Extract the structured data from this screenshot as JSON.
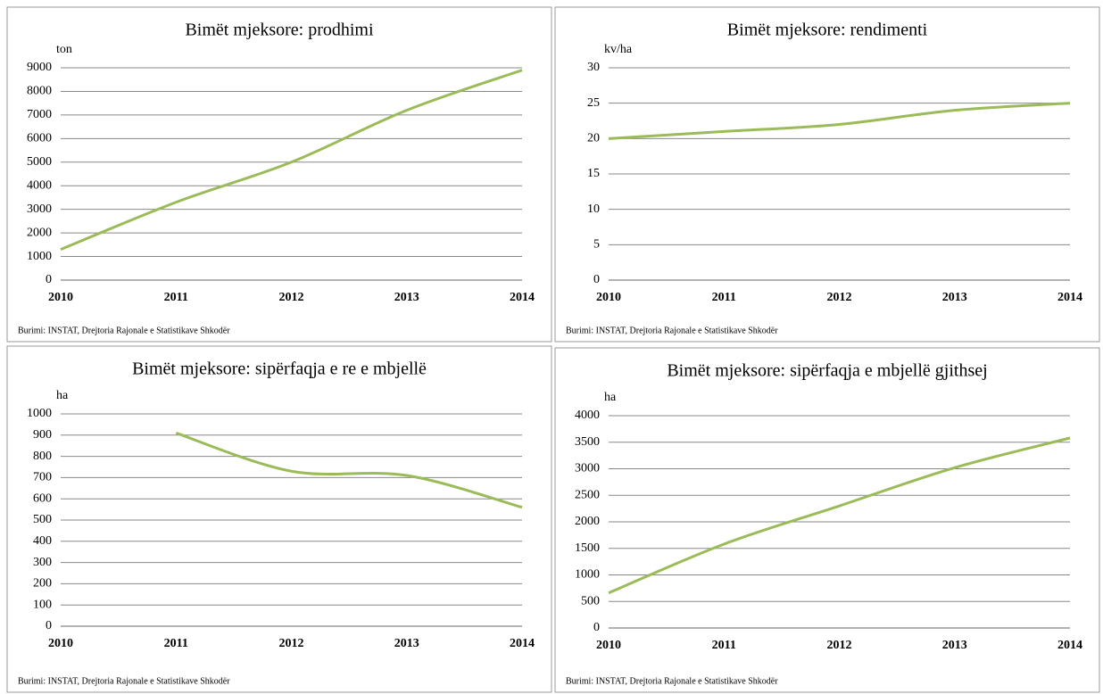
{
  "chart_data": [
    {
      "type": "line",
      "title": "Bimët mjeksore: prodhimi",
      "y_label": "ton",
      "categories": [
        "2010",
        "2011",
        "2012",
        "2013",
        "2014"
      ],
      "series": [
        {
          "name": "prodhimi",
          "color": "#9bbb59",
          "values": [
            1300,
            3300,
            5000,
            7200,
            8900
          ]
        }
      ],
      "ylim": [
        0,
        9000
      ],
      "yticks": [
        0,
        1000,
        2000,
        3000,
        4000,
        5000,
        6000,
        7000,
        8000,
        9000
      ],
      "grid": true,
      "source": "Burimi: INSTAT, Drejtoria Rajonale e Statistikave Shkodër"
    },
    {
      "type": "line",
      "title": "Bimët mjeksore: rendimenti",
      "y_label": "kv/ha",
      "categories": [
        "2010",
        "2011",
        "2012",
        "2013",
        "2014"
      ],
      "series": [
        {
          "name": "rendimenti",
          "color": "#9bbb59",
          "values": [
            20,
            21,
            22,
            24,
            25
          ]
        }
      ],
      "ylim": [
        0,
        30
      ],
      "yticks": [
        0,
        5,
        10,
        15,
        20,
        25,
        30
      ],
      "grid": true,
      "source": "Burimi: INSTAT, Drejtoria Rajonale e Statistikave Shkodër"
    },
    {
      "type": "line",
      "title": "Bimët mjeksore: sipërfaqja e re e mbjellë",
      "y_label": "ha",
      "categories": [
        "2010",
        "2011",
        "2012",
        "2013",
        "2014"
      ],
      "series": [
        {
          "name": "sipërfaqja e re e mbjellë",
          "color": "#9bbb59",
          "values": [
            null,
            910,
            730,
            710,
            560
          ]
        }
      ],
      "ylim": [
        0,
        1000
      ],
      "yticks": [
        0,
        100,
        200,
        300,
        400,
        500,
        600,
        700,
        800,
        900,
        1000
      ],
      "grid": true,
      "source": "Burimi: INSTAT, Drejtoria Rajonale e Statistikave Shkodër"
    },
    {
      "type": "line",
      "title": "Bimët mjeksore: sipërfaqja e mbjellë gjithsej",
      "y_label": "ha",
      "categories": [
        "2010",
        "2011",
        "2012",
        "2013",
        "2014"
      ],
      "series": [
        {
          "name": "sipërfaqja e mbjellë gjithsej",
          "color": "#9bbb59",
          "values": [
            660,
            1580,
            2300,
            3020,
            3580
          ]
        }
      ],
      "ylim": [
        0,
        4000
      ],
      "yticks": [
        0,
        500,
        1000,
        1500,
        2000,
        2500,
        3000,
        3500,
        4000
      ],
      "grid": true,
      "source": "Burimi: INSTAT, Drejtoria Rajonale e Statistikave Shkodër"
    }
  ]
}
